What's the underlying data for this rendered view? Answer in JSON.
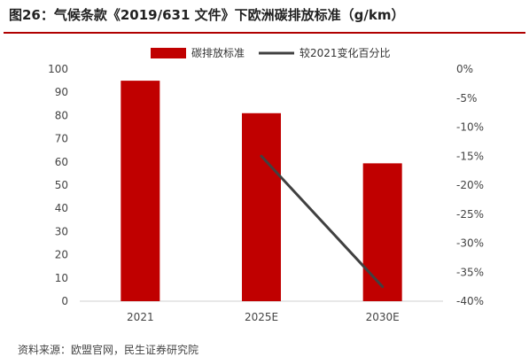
{
  "title": "图26：气候条款《2019/631 文件》下欧洲碳排放标准（g/km）",
  "source": "资料来源：欧盟官网，民生证券研究院",
  "colors": {
    "bar": "#c00000",
    "line": "#404040",
    "rule": "#b00000"
  },
  "chart_data": {
    "type": "bar",
    "categories": [
      "2021",
      "2025E",
      "2030E"
    ],
    "series": [
      {
        "name": "碳排放标准",
        "type": "bar",
        "axis": "left",
        "values": [
          95,
          81,
          59.4
        ]
      },
      {
        "name": "较2021变化百分比",
        "type": "line",
        "axis": "right",
        "values": [
          null,
          -15,
          -37.5
        ]
      }
    ],
    "y_left": {
      "lim": [
        0,
        100
      ],
      "ticks": [
        "0",
        "10",
        "20",
        "30",
        "40",
        "50",
        "60",
        "70",
        "80",
        "90",
        "100"
      ]
    },
    "y_right": {
      "lim": [
        -40,
        0
      ],
      "ticks": [
        "0%",
        "-5%",
        "-10%",
        "-15%",
        "-20%",
        "-25%",
        "-30%",
        "-35%",
        "-40%"
      ]
    },
    "legend_position": "top-center",
    "grid": false
  }
}
